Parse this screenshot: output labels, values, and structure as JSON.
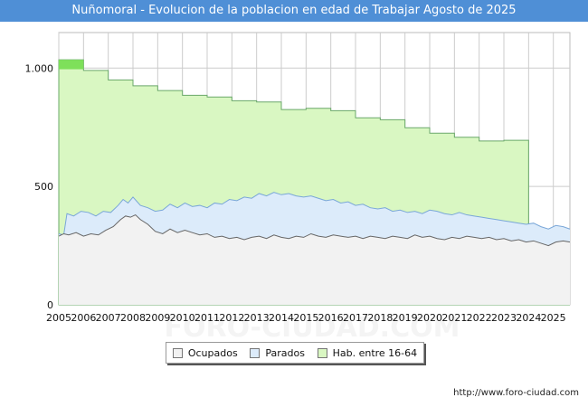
{
  "header": {
    "title": "Nuñomoral - Evolucion de la poblacion en edad de Trabajar Agosto de 2025"
  },
  "credit": "http://www.foro-ciudad.com",
  "watermark": "FORO-CIUDAD.COM",
  "colors": {
    "header_bg": "#4f8fd6",
    "ocupados_fill": "#f2f2f2",
    "ocupados_line": "#666666",
    "parados_fill": "#dcebfa",
    "parados_line": "#7aa7d8",
    "hab_fill": "#d9f7c2",
    "hab_line": "#6aa86a",
    "hab_highlight": "#7ee05a",
    "grid": "#cccccc"
  },
  "chart_data": {
    "type": "area",
    "title": "Nuñomoral - Evolucion de la poblacion en edad de Trabajar Agosto de 2025",
    "xlabel": "",
    "ylabel": "",
    "xlim": [
      2005,
      2025.67
    ],
    "ylim": [
      0,
      1150
    ],
    "x_ticks": [
      "2005",
      "2006",
      "2007",
      "2008",
      "2009",
      "2010",
      "2011",
      "2012",
      "2013",
      "2014",
      "2015",
      "2016",
      "2017",
      "2018",
      "2019",
      "2020",
      "2021",
      "2022",
      "2023",
      "2024",
      "2025"
    ],
    "y_ticks": [
      {
        "value": 0,
        "label": "0"
      },
      {
        "value": 500,
        "label": "500"
      },
      {
        "value": 1000,
        "label": "1.000"
      }
    ],
    "grid": true,
    "legend_position": "bottom-center",
    "series": [
      {
        "name": "Hab. entre 16-64",
        "kind": "step",
        "years": [
          2005,
          2006,
          2007,
          2008,
          2009,
          2010,
          2011,
          2012,
          2013,
          2014,
          2015,
          2016,
          2017,
          2018,
          2019,
          2020,
          2021,
          2022,
          2023,
          2024
        ],
        "values": [
          1035,
          990,
          950,
          925,
          905,
          885,
          878,
          862,
          857,
          825,
          830,
          820,
          790,
          782,
          748,
          725,
          708,
          692,
          695,
          0
        ],
        "note_values": [
          995
        ]
      },
      {
        "name": "Parados",
        "kind": "line",
        "points": [
          [
            2005.0,
            300
          ],
          [
            2005.2,
            295
          ],
          [
            2005.33,
            385
          ],
          [
            2005.6,
            375
          ],
          [
            2005.9,
            395
          ],
          [
            2006.2,
            390
          ],
          [
            2006.5,
            375
          ],
          [
            2006.8,
            395
          ],
          [
            2007.1,
            390
          ],
          [
            2007.4,
            420
          ],
          [
            2007.6,
            445
          ],
          [
            2007.8,
            430
          ],
          [
            2008.0,
            455
          ],
          [
            2008.3,
            420
          ],
          [
            2008.6,
            410
          ],
          [
            2008.9,
            395
          ],
          [
            2009.2,
            400
          ],
          [
            2009.5,
            425
          ],
          [
            2009.8,
            410
          ],
          [
            2010.1,
            430
          ],
          [
            2010.4,
            415
          ],
          [
            2010.7,
            420
          ],
          [
            2011.0,
            410
          ],
          [
            2011.3,
            430
          ],
          [
            2011.6,
            425
          ],
          [
            2011.9,
            445
          ],
          [
            2012.2,
            440
          ],
          [
            2012.5,
            455
          ],
          [
            2012.8,
            450
          ],
          [
            2013.1,
            470
          ],
          [
            2013.4,
            460
          ],
          [
            2013.7,
            475
          ],
          [
            2014.0,
            465
          ],
          [
            2014.3,
            470
          ],
          [
            2014.6,
            460
          ],
          [
            2014.9,
            455
          ],
          [
            2015.2,
            460
          ],
          [
            2015.5,
            450
          ],
          [
            2015.8,
            440
          ],
          [
            2016.1,
            445
          ],
          [
            2016.4,
            430
          ],
          [
            2016.7,
            435
          ],
          [
            2017.0,
            420
          ],
          [
            2017.3,
            425
          ],
          [
            2017.6,
            410
          ],
          [
            2017.9,
            405
          ],
          [
            2018.2,
            410
          ],
          [
            2018.5,
            395
          ],
          [
            2018.8,
            400
          ],
          [
            2019.1,
            390
          ],
          [
            2019.4,
            395
          ],
          [
            2019.7,
            385
          ],
          [
            2020.0,
            400
          ],
          [
            2020.3,
            395
          ],
          [
            2020.6,
            385
          ],
          [
            2020.9,
            380
          ],
          [
            2021.2,
            390
          ],
          [
            2021.5,
            380
          ],
          [
            2021.8,
            375
          ],
          [
            2022.1,
            370
          ],
          [
            2022.4,
            365
          ],
          [
            2022.7,
            360
          ],
          [
            2023.0,
            355
          ],
          [
            2023.3,
            350
          ],
          [
            2023.6,
            345
          ],
          [
            2023.9,
            340
          ],
          [
            2024.2,
            345
          ],
          [
            2024.5,
            330
          ],
          [
            2024.8,
            320
          ],
          [
            2025.1,
            335
          ],
          [
            2025.4,
            330
          ],
          [
            2025.67,
            320
          ]
        ]
      },
      {
        "name": "Ocupados",
        "kind": "line",
        "points": [
          [
            2005.0,
            290
          ],
          [
            2005.2,
            300
          ],
          [
            2005.4,
            295
          ],
          [
            2005.7,
            305
          ],
          [
            2006.0,
            290
          ],
          [
            2006.3,
            300
          ],
          [
            2006.6,
            295
          ],
          [
            2006.9,
            315
          ],
          [
            2007.2,
            330
          ],
          [
            2007.5,
            360
          ],
          [
            2007.7,
            375
          ],
          [
            2007.9,
            370
          ],
          [
            2008.1,
            380
          ],
          [
            2008.3,
            360
          ],
          [
            2008.6,
            340
          ],
          [
            2008.9,
            310
          ],
          [
            2009.2,
            300
          ],
          [
            2009.5,
            320
          ],
          [
            2009.8,
            305
          ],
          [
            2010.1,
            315
          ],
          [
            2010.4,
            305
          ],
          [
            2010.7,
            295
          ],
          [
            2011.0,
            300
          ],
          [
            2011.3,
            285
          ],
          [
            2011.6,
            290
          ],
          [
            2011.9,
            280
          ],
          [
            2012.2,
            285
          ],
          [
            2012.5,
            275
          ],
          [
            2012.8,
            285
          ],
          [
            2013.1,
            290
          ],
          [
            2013.4,
            280
          ],
          [
            2013.7,
            295
          ],
          [
            2014.0,
            285
          ],
          [
            2014.3,
            280
          ],
          [
            2014.6,
            290
          ],
          [
            2014.9,
            285
          ],
          [
            2015.2,
            300
          ],
          [
            2015.5,
            290
          ],
          [
            2015.8,
            285
          ],
          [
            2016.1,
            295
          ],
          [
            2016.4,
            290
          ],
          [
            2016.7,
            285
          ],
          [
            2017.0,
            290
          ],
          [
            2017.3,
            280
          ],
          [
            2017.6,
            290
          ],
          [
            2017.9,
            285
          ],
          [
            2018.2,
            280
          ],
          [
            2018.5,
            290
          ],
          [
            2018.8,
            285
          ],
          [
            2019.1,
            280
          ],
          [
            2019.4,
            295
          ],
          [
            2019.7,
            285
          ],
          [
            2020.0,
            290
          ],
          [
            2020.3,
            280
          ],
          [
            2020.6,
            275
          ],
          [
            2020.9,
            285
          ],
          [
            2021.2,
            280
          ],
          [
            2021.5,
            290
          ],
          [
            2021.8,
            285
          ],
          [
            2022.1,
            280
          ],
          [
            2022.4,
            285
          ],
          [
            2022.7,
            275
          ],
          [
            2023.0,
            280
          ],
          [
            2023.3,
            270
          ],
          [
            2023.6,
            275
          ],
          [
            2023.9,
            265
          ],
          [
            2024.2,
            270
          ],
          [
            2024.5,
            260
          ],
          [
            2024.8,
            250
          ],
          [
            2025.1,
            265
          ],
          [
            2025.4,
            270
          ],
          [
            2025.67,
            265
          ]
        ]
      }
    ]
  }
}
